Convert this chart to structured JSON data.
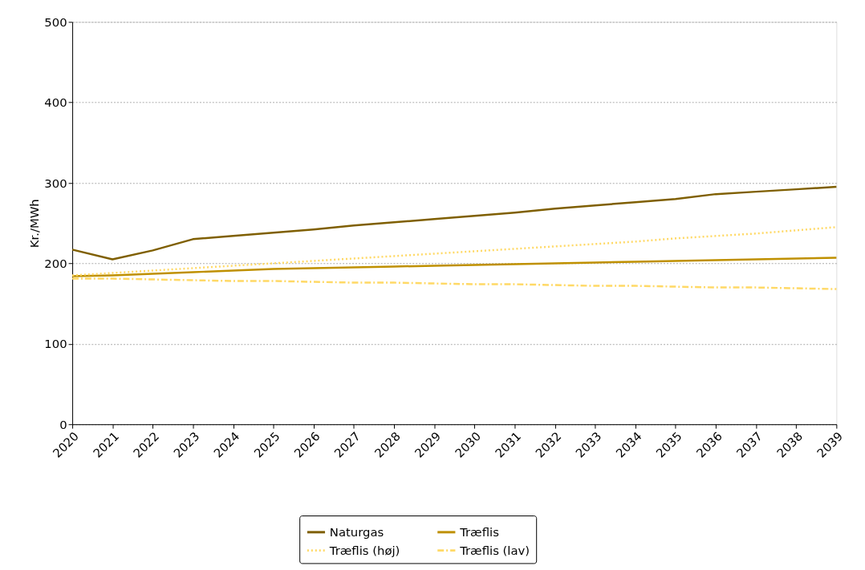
{
  "chart_data": {
    "type": "line",
    "ylabel": "Kr./MWh",
    "categories": [
      "2020",
      "2021",
      "2022",
      "2023",
      "2024",
      "2025",
      "2026",
      "2027",
      "2028",
      "2029",
      "2030",
      "2031",
      "2032",
      "2033",
      "2034",
      "2035",
      "2036",
      "2037",
      "2038",
      "2039"
    ],
    "series": [
      {
        "name": "Naturgas",
        "color": "#7f5f00",
        "line_style": "solid",
        "values": [
          217,
          205,
          216,
          230,
          234,
          238,
          242,
          247,
          251,
          255,
          259,
          263,
          268,
          272,
          276,
          280,
          286,
          289,
          292,
          295
        ]
      },
      {
        "name": "Træflis",
        "color": "#bf9000",
        "line_style": "solid",
        "values": [
          184,
          185,
          187,
          189,
          191,
          193,
          194,
          195,
          196,
          197,
          198,
          199,
          200,
          201,
          202,
          203,
          204,
          205,
          206,
          207
        ]
      },
      {
        "name": "Træflis (høj)",
        "color": "#ffd966",
        "line_style": "dotted",
        "values": [
          185,
          188,
          191,
          194,
          197,
          200,
          203,
          206,
          209,
          212,
          215,
          218,
          221,
          224,
          227,
          231,
          234,
          237,
          241,
          245
        ]
      },
      {
        "name": "Træflis (lav)",
        "color": "#ffd966",
        "line_style": "dashdot",
        "values": [
          181,
          181,
          180,
          179,
          178,
          178,
          177,
          176,
          176,
          175,
          174,
          174,
          173,
          172,
          172,
          171,
          170,
          170,
          169,
          168
        ]
      }
    ],
    "ylim": [
      0,
      500
    ],
    "yticks": [
      0,
      100,
      200,
      300,
      400,
      500
    ],
    "grid": "y",
    "legend": "bottom",
    "marker": "none"
  }
}
